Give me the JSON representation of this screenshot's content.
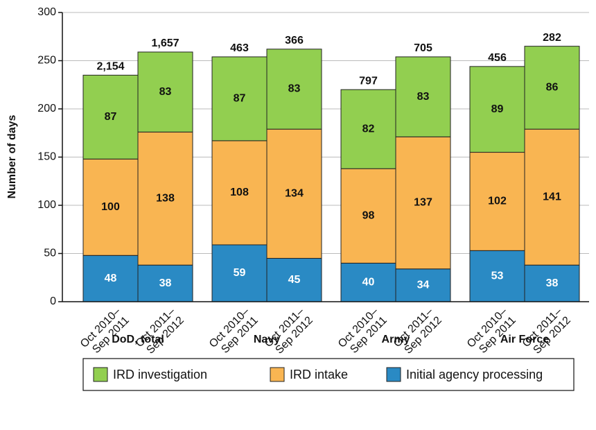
{
  "chart_data": {
    "type": "stacked_bar",
    "y_label": "Number of days",
    "groups": [
      "DoD, total",
      "Navy",
      "Army",
      "Air Force"
    ],
    "categories": [
      [
        "Oct 2010–",
        "Sep 2011"
      ],
      [
        "Oct 2011–",
        "Sep 2012"
      ],
      [
        "Oct 2010–",
        "Sep 2011"
      ],
      [
        "Oct 2011–",
        "Sep 2012"
      ],
      [
        "Oct 2010–",
        "Sep 2011"
      ],
      [
        "Oct 2011–",
        "Sep 2012"
      ],
      [
        "Oct 2010–",
        "Sep 2011"
      ],
      [
        "Oct 2011–",
        "Sep 2012"
      ]
    ],
    "series": [
      {
        "name": "Initial agency processing",
        "color": "#2a8ac4",
        "values": [
          48,
          38,
          59,
          45,
          40,
          34,
          53,
          38
        ]
      },
      {
        "name": "IRD intake",
        "color": "#f9b552",
        "values": [
          100,
          138,
          108,
          134,
          98,
          137,
          102,
          141
        ]
      },
      {
        "name": "IRD investigation",
        "color": "#92cf50",
        "values": [
          87,
          83,
          87,
          83,
          82,
          83,
          89,
          86
        ]
      }
    ],
    "case_counts": [
      "2,154",
      "1,657",
      "463",
      "366",
      "797",
      "705",
      "456",
      "282"
    ],
    "ylim": [
      0,
      300
    ],
    "yticks": [
      0,
      50,
      100,
      150,
      200,
      250,
      300
    ],
    "grid": true
  }
}
